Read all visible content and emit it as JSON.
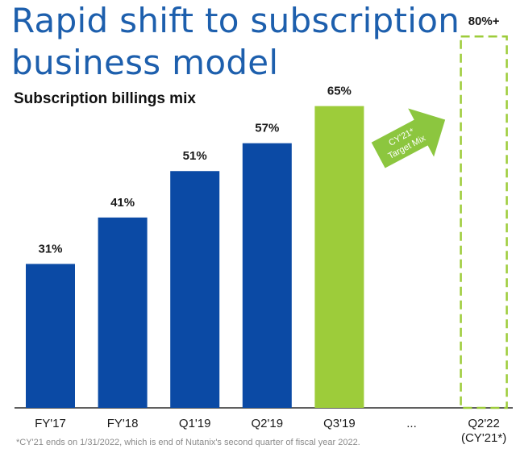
{
  "title_line1": "Rapid shift to subscription",
  "title_line2": "business model",
  "subtitle": "Subscription billings mix",
  "footnote": "*CY'21 ends on 1/31/2022, which is end of Nutanix's second quarter of fiscal year 2022.",
  "colors": {
    "title": "#1d5fad",
    "blue": "#0b4aa5",
    "green": "#9dcc3a",
    "axis": "#2a2a2a",
    "arrow": "#8cc63f"
  },
  "arrow_label_line1": "CY'21*",
  "arrow_label_line2": "Target Mix",
  "chart_data": {
    "type": "bar",
    "categories": [
      "FY'17",
      "FY'18",
      "Q1'19",
      "Q2'19",
      "Q3'19",
      "...",
      "Q2'22"
    ],
    "category_sublabels": [
      "",
      "",
      "",
      "",
      "",
      "",
      "(CY'21*)"
    ],
    "values": [
      31,
      41,
      51,
      57,
      65,
      null,
      80
    ],
    "value_labels": [
      "31%",
      "41%",
      "51%",
      "57%",
      "65%",
      "",
      "80%+"
    ],
    "bar_styles": [
      "blue",
      "blue",
      "blue",
      "blue",
      "green",
      "none",
      "target-dashed"
    ],
    "ylim": [
      0,
      100
    ]
  }
}
